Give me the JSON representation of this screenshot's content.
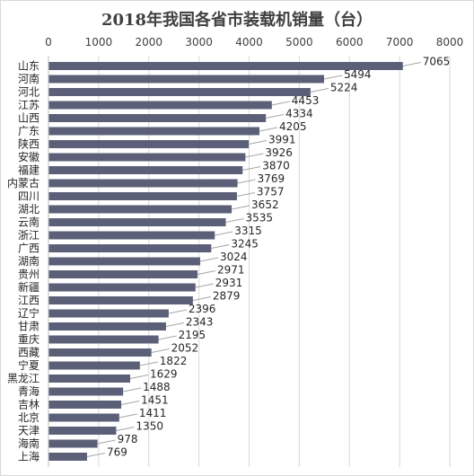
{
  "chart_data": {
    "type": "bar",
    "orientation": "horizontal",
    "title": "2018年我国各省市装载机销量（台）",
    "xlim": [
      0,
      8000
    ],
    "xticks": [
      0,
      1000,
      2000,
      3000,
      4000,
      5000,
      6000,
      7000,
      8000
    ],
    "x_axis_position": "top",
    "grid": true,
    "legend": "none",
    "bar_color": "#5b6078",
    "leader_color": "#a6a6a6",
    "categories": [
      "山东",
      "河南",
      "河北",
      "江苏",
      "山西",
      "广东",
      "陕西",
      "安徽",
      "福建",
      "内蒙古",
      "四川",
      "湖北",
      "云南",
      "浙江",
      "广西",
      "湖南",
      "贵州",
      "新疆",
      "江西",
      "辽宁",
      "甘肃",
      "重庆",
      "西藏",
      "宁夏",
      "黑龙江",
      "青海",
      "吉林",
      "北京",
      "天津",
      "海南",
      "上海"
    ],
    "values": [
      7065,
      5494,
      5224,
      4453,
      4334,
      4205,
      3991,
      3926,
      3870,
      3769,
      3757,
      3652,
      3535,
      3315,
      3245,
      3024,
      2971,
      2931,
      2879,
      2396,
      2343,
      2195,
      2052,
      1822,
      1629,
      1488,
      1451,
      1411,
      1350,
      978,
      769
    ]
  }
}
